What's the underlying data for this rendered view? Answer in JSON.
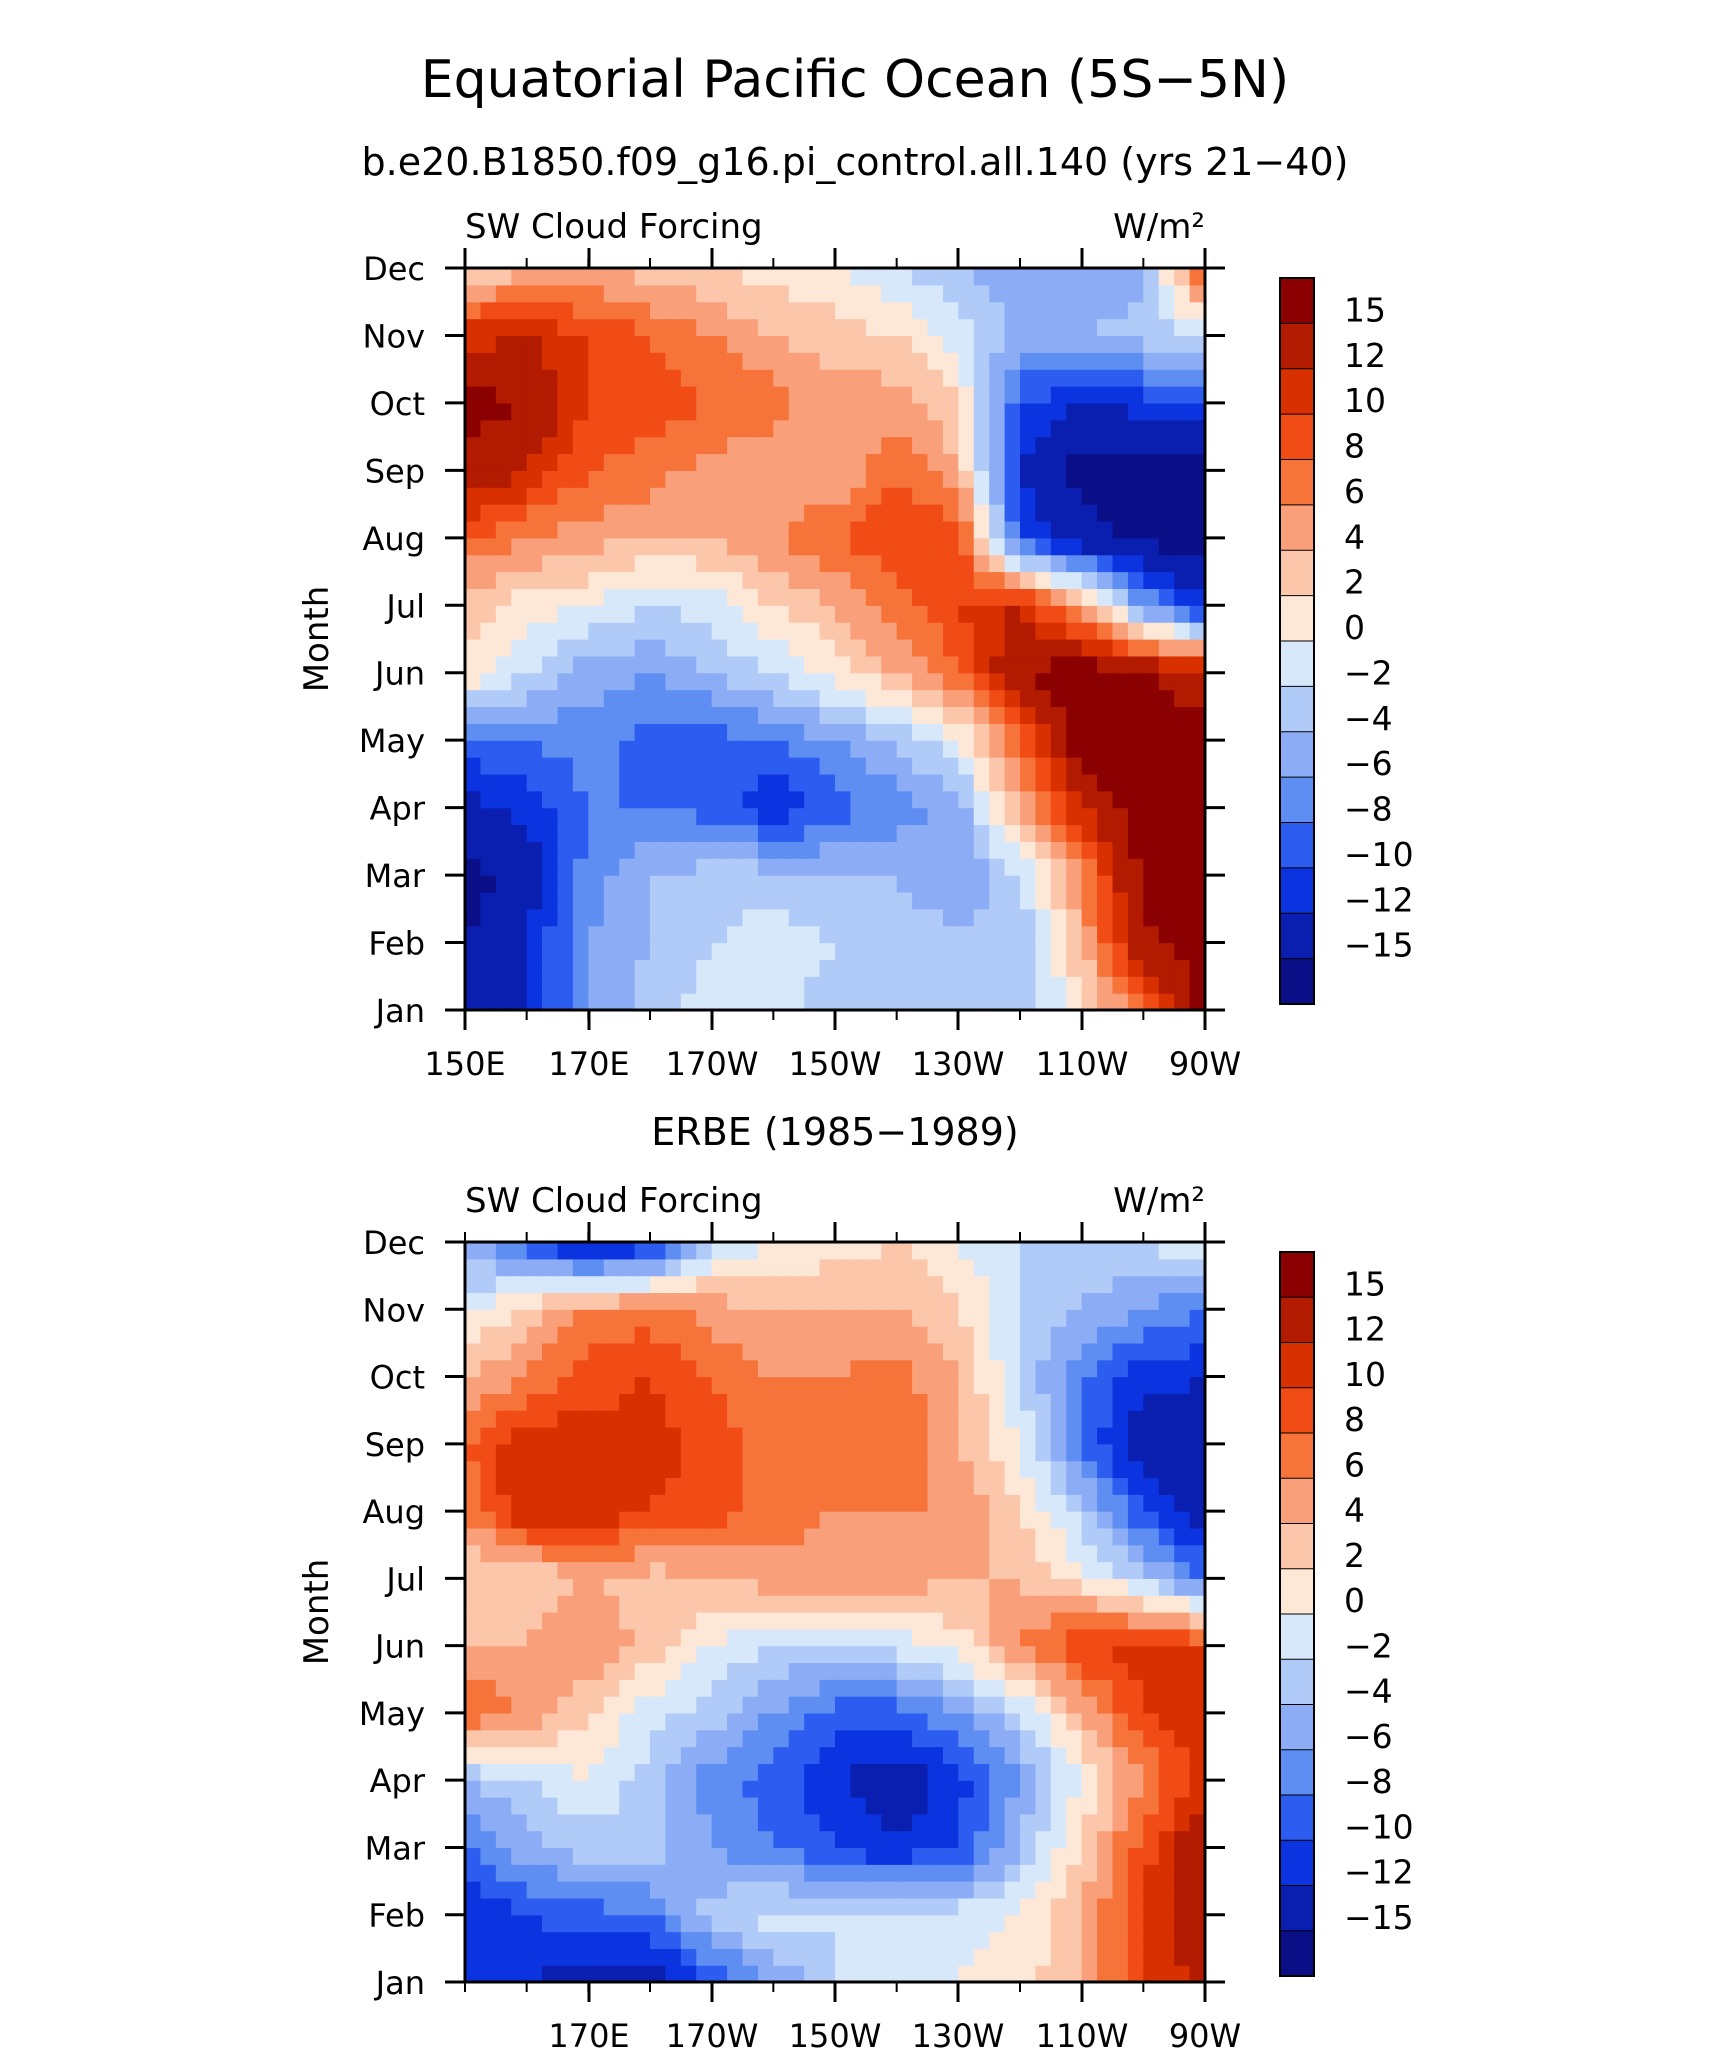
{
  "title": "Equatorial Pacific Ocean (5S−5N)",
  "subtitle": "b.e20.B1850.f09_g16.pi_control.all.140 (yrs 21−40)",
  "colormap": {
    "levels": [
      "15",
      "12",
      "10",
      "8",
      "6",
      "4",
      "2",
      "0",
      "−2",
      "−4",
      "−6",
      "−8",
      "−10",
      "−12",
      "−15"
    ],
    "colors_top_to_bottom": [
      "#8b0000",
      "#b31b00",
      "#d93000",
      "#f14b16",
      "#f6733a",
      "#f9a07a",
      "#fbc6aa",
      "#fde8d8",
      "#d8e8fb",
      "#b0cbf8",
      "#8cadf6",
      "#5e8ef2",
      "#2c5df0",
      "#0b34e0",
      "#0a1fb0",
      "#0a0f87"
    ]
  },
  "chart_data": [
    {
      "type": "heatmap",
      "panel_title": "",
      "left_label": "SW Cloud Forcing",
      "right_label": "W/m²",
      "ylabel": "Month",
      "x_ticks": [
        "150E",
        "170E",
        "170W",
        "150W",
        "130W",
        "110W",
        "90W"
      ],
      "y_ticks": [
        "Jan",
        "Feb",
        "Mar",
        "Apr",
        "May",
        "Jun",
        "Jul",
        "Aug",
        "Sep",
        "Oct",
        "Nov",
        "Dec"
      ],
      "x_range": [
        "150E",
        "90W"
      ],
      "months": [
        "Jan",
        "Feb",
        "Mar",
        "Apr",
        "May",
        "Jun",
        "Jul",
        "Aug",
        "Sep",
        "Oct",
        "Nov",
        "Dec"
      ],
      "longitudes": [
        "150E",
        "160E",
        "170E",
        "180",
        "170W",
        "160W",
        "150W",
        "140W",
        "130W",
        "120W",
        "110W",
        "100W",
        "90W"
      ],
      "values": [
        [
          -14,
          -12,
          -6,
          -3,
          -1,
          -1,
          -3,
          -3,
          -3,
          -4,
          1,
          8,
          16
        ],
        [
          -15,
          -12,
          -6,
          -4,
          -2,
          -1,
          -2,
          -3,
          -3,
          -4,
          4,
          14,
          17
        ],
        [
          -16,
          -14,
          -7,
          -4,
          -3,
          -3,
          -4,
          -4,
          -6,
          -2,
          6,
          16,
          17
        ],
        [
          -13,
          -11,
          -8,
          -8,
          -9,
          -12,
          -9,
          -7,
          -5,
          4,
          12,
          17,
          17
        ],
        [
          -9,
          -8,
          -7,
          -9,
          -9,
          -8,
          -6,
          -4,
          0,
          8,
          17,
          17,
          16
        ],
        [
          2,
          -2,
          -5,
          -6,
          -4,
          -2,
          1,
          4,
          8,
          15,
          17,
          15,
          13
        ],
        [
          3,
          1,
          0,
          -2,
          -1,
          2,
          4,
          7,
          10,
          12,
          4,
          -6,
          -12
        ],
        [
          8,
          6,
          5,
          4,
          4,
          6,
          8,
          10,
          10,
          -10,
          -14,
          -16,
          -17
        ],
        [
          14,
          12,
          8,
          7,
          5,
          4,
          4,
          8,
          4,
          -12,
          -16,
          -17,
          -17
        ],
        [
          16,
          15,
          10,
          9,
          8,
          7,
          5,
          5,
          2,
          -10,
          -12,
          -11,
          -10
        ],
        [
          11,
          12,
          10,
          8,
          6,
          4,
          3,
          2,
          -1,
          -5,
          -4,
          -3,
          -2
        ],
        [
          2,
          3,
          4,
          3,
          2,
          1,
          0,
          -2,
          -4,
          -5,
          -6,
          -5,
          10
        ]
      ]
    },
    {
      "type": "heatmap",
      "panel_title": "ERBE (1985−1989)",
      "left_label": "SW Cloud Forcing",
      "right_label": "W/m²",
      "ylabel": "Month",
      "x_ticks": [
        "170E",
        "170W",
        "150W",
        "130W",
        "110W",
        "90W"
      ],
      "y_ticks": [
        "Jan",
        "Feb",
        "Mar",
        "Apr",
        "May",
        "Jun",
        "Jul",
        "Aug",
        "Sep",
        "Oct",
        "Nov",
        "Dec"
      ],
      "x_range": [
        "150E",
        "90W"
      ],
      "months": [
        "Jan",
        "Feb",
        "Mar",
        "Apr",
        "May",
        "Jun",
        "Jul",
        "Aug",
        "Sep",
        "Oct",
        "Nov",
        "Dec"
      ],
      "longitudes": [
        "150E",
        "160E",
        "170E",
        "180",
        "170W",
        "160W",
        "150W",
        "140W",
        "130W",
        "120W",
        "110W",
        "100W",
        "90W"
      ],
      "values": [
        [
          -10,
          -12,
          -13,
          -14,
          -10,
          -6,
          -2,
          0,
          0,
          1,
          4,
          10,
          13
        ],
        [
          -12,
          -10,
          -9,
          -8,
          -3,
          -1,
          -2,
          -1,
          -1,
          0,
          4,
          10,
          14
        ],
        [
          -8,
          -5,
          -3,
          -3,
          -6,
          -8,
          -10,
          -12,
          -10,
          -4,
          2,
          9,
          15
        ],
        [
          -4,
          -2,
          0,
          -3,
          -7,
          -9,
          -12,
          -14,
          -11,
          -6,
          0,
          6,
          11
        ],
        [
          8,
          6,
          2,
          -1,
          -3,
          -6,
          -9,
          -9,
          -6,
          -2,
          4,
          10,
          12
        ],
        [
          4,
          4,
          6,
          3,
          0,
          -2,
          -3,
          -1,
          1,
          6,
          10,
          11,
          10
        ],
        [
          2,
          2,
          4,
          3,
          4,
          5,
          5,
          5,
          4,
          4,
          1,
          -3,
          -8
        ],
        [
          6,
          12,
          12,
          10,
          9,
          7,
          6,
          6,
          6,
          2,
          -3,
          -10,
          -14
        ],
        [
          8,
          12,
          11,
          11,
          9,
          7,
          7,
          8,
          4,
          0,
          -8,
          -14,
          -15
        ],
        [
          4,
          6,
          9,
          10,
          8,
          6,
          6,
          7,
          4,
          -2,
          -8,
          -11,
          -12
        ],
        [
          -1,
          3,
          6,
          7,
          5,
          4,
          4,
          4,
          2,
          -2,
          -4,
          -6,
          -8
        ],
        [
          -4,
          -10,
          -14,
          -12,
          -2,
          0,
          1,
          2,
          0,
          -2,
          -3,
          -2,
          0
        ]
      ]
    }
  ]
}
